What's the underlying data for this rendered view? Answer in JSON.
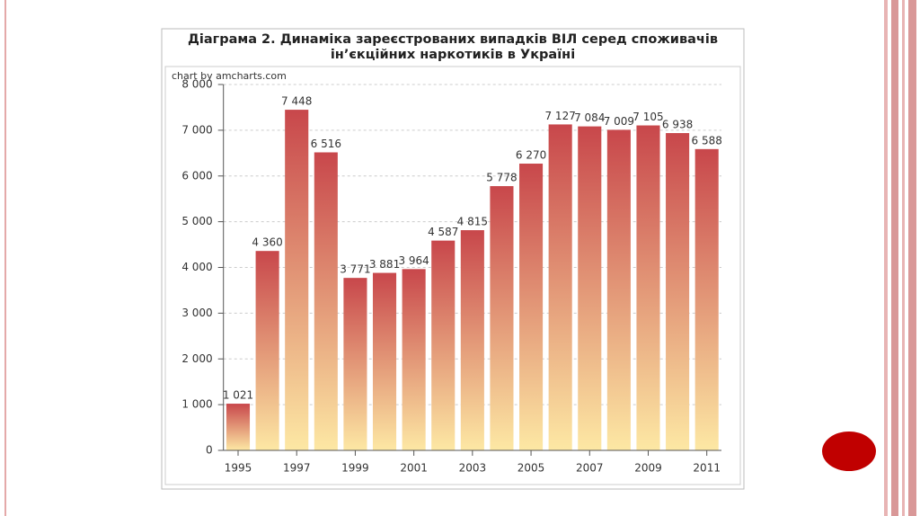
{
  "chart_data": {
    "type": "bar",
    "title": "Діаграма 2. Динаміка зареєстрованих випадків ВІЛ серед споживачів ін’єкційних наркотиків в Україні",
    "credit": "chart by amcharts.com",
    "categories": [
      "1995",
      null,
      "1997",
      null,
      "1999",
      null,
      "2001",
      null,
      "2003",
      null,
      "2005",
      null,
      "2007",
      null,
      "2009",
      null,
      "2011"
    ],
    "values": [
      1021,
      4360,
      7448,
      6516,
      3771,
      3881,
      3964,
      4587,
      4815,
      5778,
      6270,
      7127,
      7084,
      7009,
      7105,
      6938,
      6588
    ],
    "value_labels": [
      "1 021",
      "4 360",
      "7 448",
      "6 516",
      "3 771",
      "3 881",
      "3 964",
      "4 587",
      "4 815",
      "5 778",
      "6 270",
      "7 127",
      "7 084",
      "7 009",
      "7 105",
      "6 938",
      "6 588"
    ],
    "gradient": [
      "#c8474b",
      "#fde8a4"
    ],
    "ylim": [
      0,
      8000
    ],
    "yticks": [
      0,
      {
        "value": 1000,
        "label": "1 000"
      },
      {
        "value": 2000,
        "label": "2 000"
      },
      {
        "value": 3000,
        "label": "3 000"
      },
      {
        "value": 4000,
        "label": "4 000"
      },
      {
        "value": 5000,
        "label": "5 000"
      },
      {
        "value": 6000,
        "label": "6 000"
      },
      {
        "value": 7000,
        "label": "7 000"
      },
      {
        "value": 8000,
        "label": "8 000"
      }
    ],
    "grid": true
  }
}
